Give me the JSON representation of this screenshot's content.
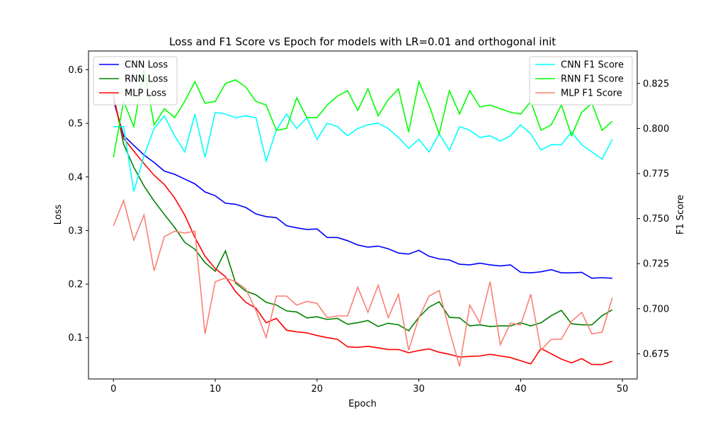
{
  "chart_data": {
    "type": "line",
    "title": "Loss and F1 Score vs Epoch for models with LR=0.01 and orthogonal init",
    "xlabel": "Epoch",
    "ylabel_left": "Loss",
    "ylabel_right": "F1 Score",
    "xlim": [
      -2.45,
      51.45
    ],
    "ylim_left": [
      0.023,
      0.635
    ],
    "ylim_right": [
      0.661,
      0.843
    ],
    "x_ticks": [
      0,
      10,
      20,
      30,
      40,
      50
    ],
    "y_ticks_left": [
      "0.1",
      "0.2",
      "0.3",
      "0.4",
      "0.5",
      "0.6"
    ],
    "y_ticks_right": [
      "0.675",
      "0.700",
      "0.725",
      "0.750",
      "0.775",
      "0.800",
      "0.825"
    ],
    "grid": false,
    "legend_left": {
      "position": "upper-left",
      "entries": [
        "CNN Loss",
        "RNN Loss",
        "MLP Loss"
      ]
    },
    "legend_right": {
      "position": "upper-right",
      "entries": [
        "CNN F1 Score",
        "RNN F1 Score",
        "MLP F1 Score"
      ]
    },
    "x": [
      0,
      1,
      2,
      3,
      4,
      5,
      6,
      7,
      8,
      9,
      10,
      11,
      12,
      13,
      14,
      15,
      16,
      17,
      18,
      19,
      20,
      21,
      22,
      23,
      24,
      25,
      26,
      27,
      28,
      29,
      30,
      31,
      32,
      33,
      34,
      35,
      36,
      37,
      38,
      39,
      40,
      41,
      42,
      43,
      44,
      45,
      46,
      47,
      48,
      49
    ],
    "series": [
      {
        "name": "CNN Loss",
        "axis": "left",
        "color": "#0000ff",
        "values": [
          0.543,
          0.477,
          0.459,
          0.441,
          0.427,
          0.411,
          0.405,
          0.396,
          0.387,
          0.372,
          0.365,
          0.351,
          0.349,
          0.343,
          0.331,
          0.326,
          0.324,
          0.309,
          0.305,
          0.302,
          0.303,
          0.287,
          0.287,
          0.281,
          0.273,
          0.269,
          0.271,
          0.266,
          0.258,
          0.256,
          0.263,
          0.252,
          0.247,
          0.245,
          0.237,
          0.236,
          0.239,
          0.236,
          0.234,
          0.236,
          0.222,
          0.221,
          0.223,
          0.227,
          0.221,
          0.221,
          0.222,
          0.211,
          0.212,
          0.211
        ]
      },
      {
        "name": "RNN Loss",
        "axis": "left",
        "color": "#008000",
        "values": [
          0.555,
          0.461,
          0.418,
          0.383,
          0.355,
          0.33,
          0.306,
          0.278,
          0.265,
          0.24,
          0.224,
          0.262,
          0.202,
          0.187,
          0.18,
          0.166,
          0.161,
          0.15,
          0.148,
          0.137,
          0.139,
          0.134,
          0.136,
          0.125,
          0.128,
          0.132,
          0.121,
          0.127,
          0.124,
          0.113,
          0.138,
          0.157,
          0.167,
          0.138,
          0.137,
          0.122,
          0.124,
          0.121,
          0.122,
          0.122,
          0.128,
          0.122,
          0.128,
          0.141,
          0.151,
          0.126,
          0.124,
          0.124,
          0.141,
          0.152
        ]
      },
      {
        "name": "MLP Loss",
        "axis": "left",
        "color": "#ff0000",
        "values": [
          0.549,
          0.472,
          0.448,
          0.425,
          0.403,
          0.386,
          0.361,
          0.329,
          0.287,
          0.252,
          0.229,
          0.214,
          0.186,
          0.166,
          0.155,
          0.128,
          0.136,
          0.114,
          0.111,
          0.109,
          0.104,
          0.1,
          0.097,
          0.083,
          0.082,
          0.084,
          0.081,
          0.078,
          0.078,
          0.072,
          0.076,
          0.079,
          0.073,
          0.069,
          0.064,
          0.065,
          0.066,
          0.069,
          0.066,
          0.063,
          0.057,
          0.051,
          0.08,
          0.07,
          0.06,
          0.053,
          0.061,
          0.05,
          0.05,
          0.056
        ]
      },
      {
        "name": "CNN F1 Score",
        "axis": "right",
        "color": "#00ffff",
        "values": [
          0.801,
          0.801,
          0.765,
          0.785,
          0.8,
          0.807,
          0.796,
          0.787,
          0.808,
          0.784,
          0.809,
          0.808,
          0.806,
          0.807,
          0.806,
          0.782,
          0.799,
          0.808,
          0.8,
          0.806,
          0.794,
          0.803,
          0.801,
          0.796,
          0.8,
          0.802,
          0.803,
          0.8,
          0.795,
          0.789,
          0.794,
          0.787,
          0.797,
          0.788,
          0.801,
          0.799,
          0.795,
          0.796,
          0.793,
          0.796,
          0.802,
          0.797,
          0.788,
          0.791,
          0.791,
          0.798,
          0.791,
          0.787,
          0.783,
          0.794
        ]
      },
      {
        "name": "RNN F1 Score",
        "axis": "right",
        "color": "#00ff00",
        "values": [
          0.784,
          0.815,
          0.801,
          0.833,
          0.802,
          0.811,
          0.806,
          0.815,
          0.826,
          0.814,
          0.815,
          0.825,
          0.827,
          0.823,
          0.815,
          0.813,
          0.799,
          0.8,
          0.817,
          0.806,
          0.806,
          0.813,
          0.818,
          0.821,
          0.81,
          0.822,
          0.807,
          0.816,
          0.822,
          0.798,
          0.826,
          0.813,
          0.797,
          0.821,
          0.808,
          0.821,
          0.812,
          0.813,
          0.811,
          0.809,
          0.808,
          0.815,
          0.799,
          0.802,
          0.813,
          0.796,
          0.809,
          0.814,
          0.799,
          0.804
        ]
      },
      {
        "name": "MLP F1 Score",
        "axis": "right",
        "color": "#fa8072",
        "values": [
          0.746,
          0.76,
          0.738,
          0.752,
          0.721,
          0.74,
          0.743,
          0.742,
          0.743,
          0.686,
          0.715,
          0.717,
          0.715,
          0.711,
          0.699,
          0.684,
          0.707,
          0.707,
          0.702,
          0.704,
          0.703,
          0.695,
          0.696,
          0.696,
          0.712,
          0.698,
          0.713,
          0.695,
          0.708,
          0.677,
          0.695,
          0.707,
          0.71,
          0.688,
          0.668,
          0.702,
          0.692,
          0.715,
          0.68,
          0.692,
          0.691,
          0.708,
          0.677,
          0.683,
          0.683,
          0.693,
          0.698,
          0.686,
          0.687,
          0.706
        ]
      }
    ]
  }
}
